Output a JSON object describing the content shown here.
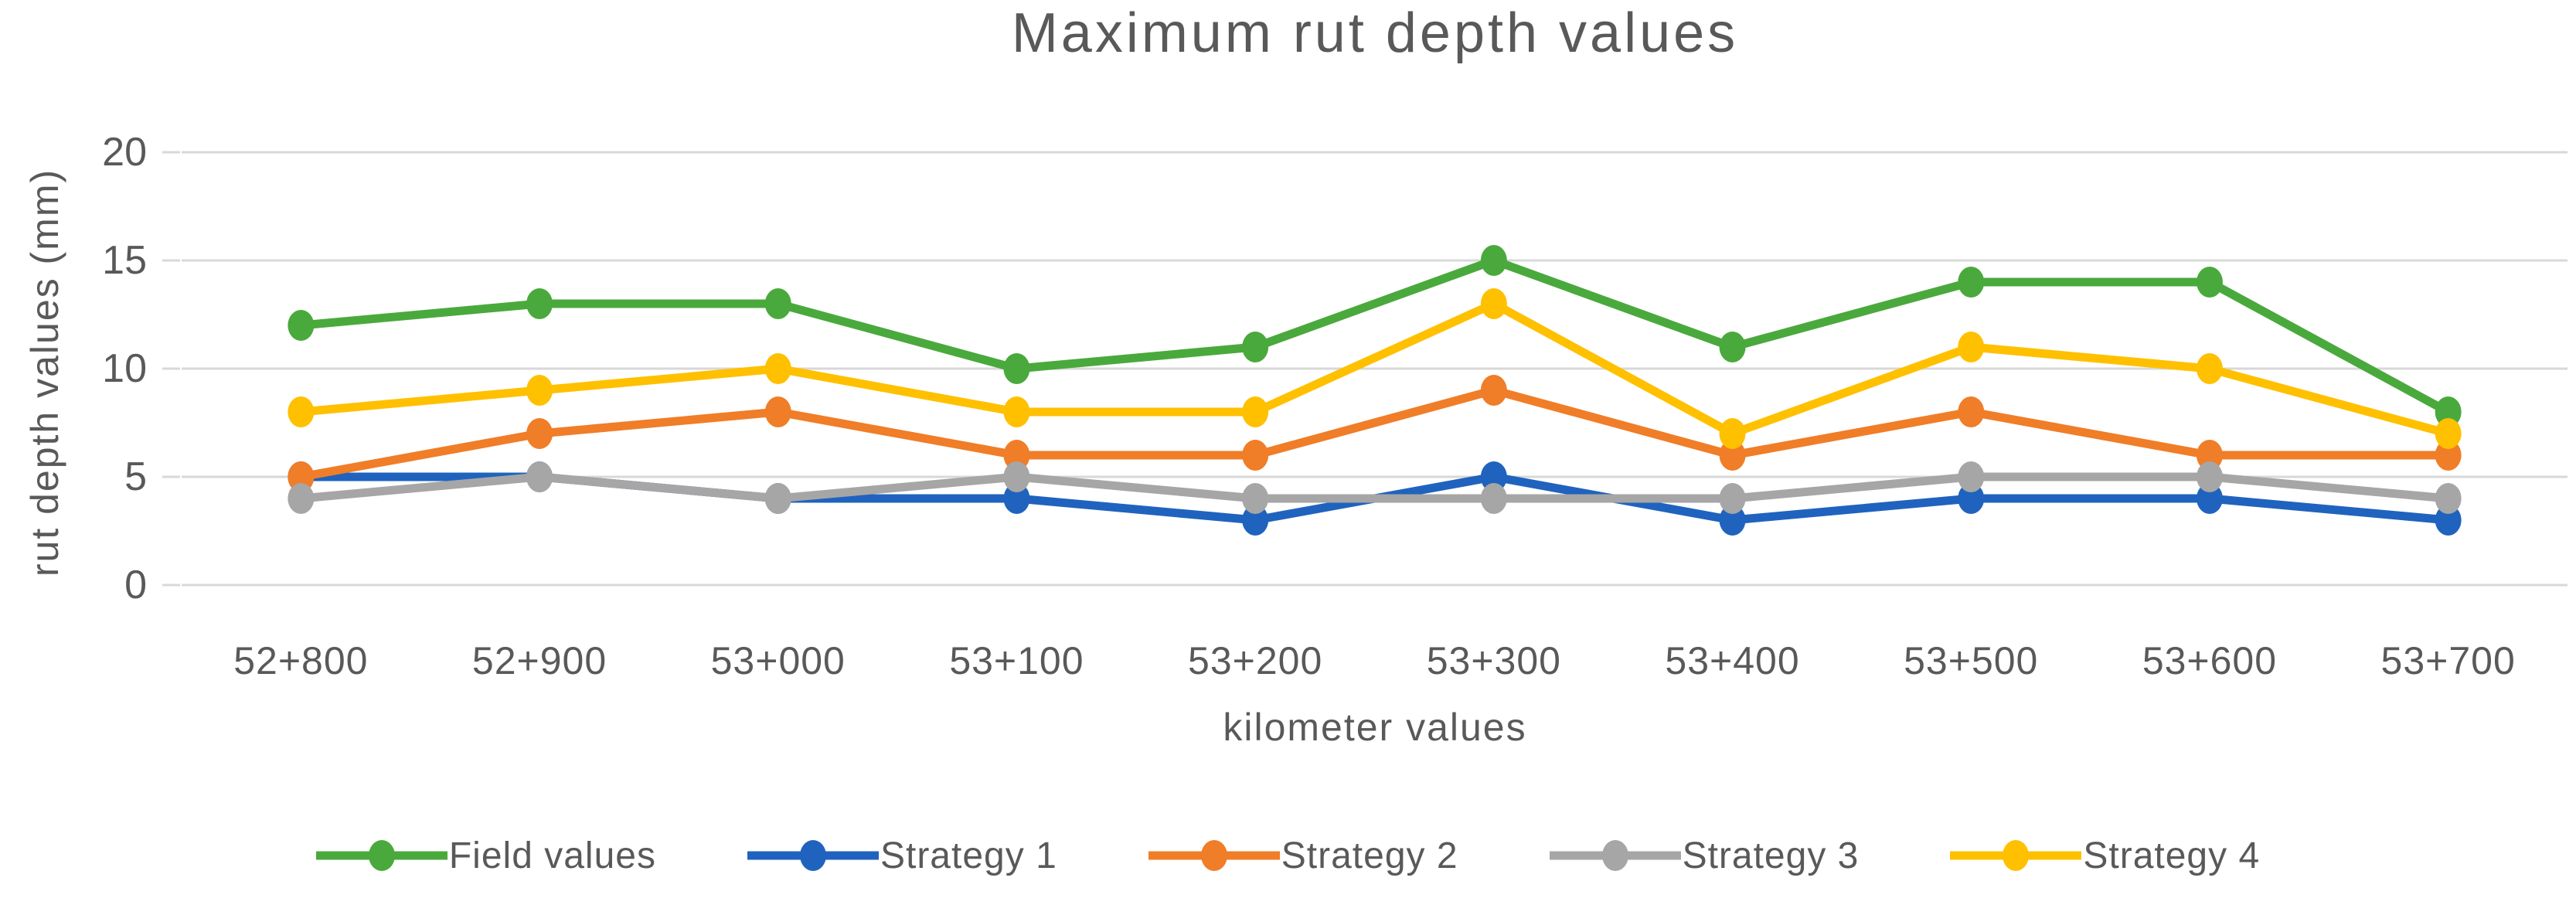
{
  "chart_data": {
    "type": "line",
    "title": "Maximum rut depth values",
    "xlabel": "kilometer values",
    "ylabel": "rut depth values (mm)",
    "ylim": [
      0,
      20
    ],
    "yticks": [
      0,
      5,
      10,
      15,
      20
    ],
    "grid": "horizontal-only",
    "legend_position": "bottom",
    "categories": [
      "52+800",
      "52+900",
      "53+000",
      "53+100",
      "53+200",
      "53+300",
      "53+400",
      "53+500",
      "53+600",
      "53+700"
    ],
    "series": [
      {
        "name": "Field values",
        "color": "#4AA93C",
        "values": [
          12,
          13,
          13,
          10,
          11,
          15,
          11,
          14,
          14,
          8
        ]
      },
      {
        "name": "Strategy 1",
        "color": "#1F63BE",
        "values": [
          5,
          5,
          4,
          4,
          3,
          5,
          3,
          4,
          4,
          3
        ]
      },
      {
        "name": "Strategy 2",
        "color": "#F07D28",
        "values": [
          5,
          7,
          8,
          6,
          6,
          9,
          6,
          8,
          6,
          6
        ]
      },
      {
        "name": "Strategy 3",
        "color": "#A6A6A6",
        "values": [
          4,
          5,
          4,
          5,
          4,
          4,
          4,
          5,
          5,
          4
        ]
      },
      {
        "name": "Strategy 4",
        "color": "#FFC000",
        "values": [
          8,
          9,
          10,
          8,
          8,
          13,
          7,
          11,
          10,
          7
        ]
      }
    ]
  },
  "style_colors": {
    "text": "#595959",
    "gridline": "#D8D8D8",
    "background": "#FFFFFF"
  }
}
